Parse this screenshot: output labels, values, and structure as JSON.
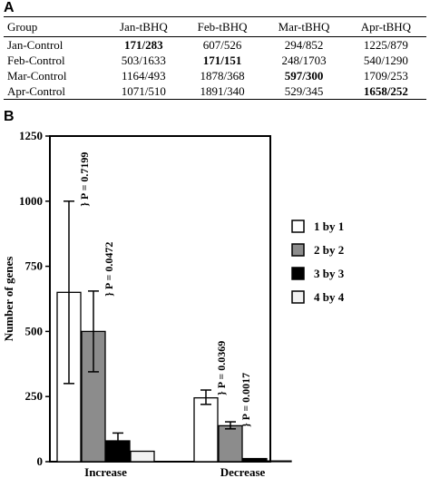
{
  "panel_a_label": "A",
  "panel_b_label": "B",
  "table": {
    "headers": [
      "Group",
      "Jan-tBHQ",
      "Feb-tBHQ",
      "Mar-tBHQ",
      "Apr-tBHQ"
    ],
    "rows": [
      {
        "group": "Jan-Control",
        "cells": [
          "171/283",
          "607/526",
          "294/852",
          "1225/879"
        ],
        "bold_index": 0
      },
      {
        "group": "Feb-Control",
        "cells": [
          "503/1633",
          "171/151",
          "248/1703",
          "540/1290"
        ],
        "bold_index": 1
      },
      {
        "group": "Mar-Control",
        "cells": [
          "1164/493",
          "1878/368",
          "597/300",
          "1709/253"
        ],
        "bold_index": 2
      },
      {
        "group": "Apr-Control",
        "cells": [
          "1071/510",
          "1891/340",
          "529/345",
          "1658/252"
        ],
        "bold_index": 3
      }
    ]
  },
  "chart_data": {
    "type": "bar",
    "categories": [
      "Increase",
      "Decrease"
    ],
    "ylabel": "Number of genes",
    "ylim": [
      0,
      1250
    ],
    "yticks": [
      0,
      250,
      500,
      750,
      1000,
      1250
    ],
    "legend_position": "right",
    "series": [
      {
        "name": "1 by 1",
        "values": [
          650,
          245
        ],
        "err_low": [
          350,
          25
        ],
        "err_high": [
          350,
          30
        ],
        "color": "#ffffff"
      },
      {
        "name": "2 by 2",
        "values": [
          500,
          138
        ],
        "err_low": [
          155,
          12
        ],
        "err_high": [
          155,
          15
        ],
        "color": "#8c8c8c"
      },
      {
        "name": "3 by 3",
        "values": [
          80,
          12
        ],
        "err_low": [
          0,
          0
        ],
        "err_high": [
          30,
          0
        ],
        "color": "#000000"
      },
      {
        "name": "4 by 4",
        "values": [
          40,
          2
        ],
        "err_low": [
          0,
          0
        ],
        "err_high": [
          0,
          0
        ],
        "color": "#f2f2f2"
      }
    ],
    "annotations": [
      {
        "text": "} P = 0.7199",
        "category": 0,
        "series": 0
      },
      {
        "text": "} P = 0.0472",
        "category": 0,
        "series": 1
      },
      {
        "text": "} P = 0.0369",
        "category": 1,
        "series": 0
      },
      {
        "text": "} P = 0.0017",
        "category": 1,
        "series": 1
      }
    ]
  }
}
